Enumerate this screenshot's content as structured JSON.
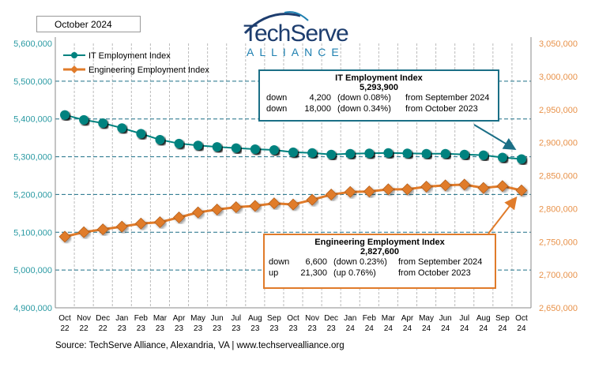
{
  "date_label": "October 2024",
  "logo": {
    "name": "TechServe",
    "sub": "ALLIANCE"
  },
  "source": "Source: TechServe  Alliance, Alexandria, VA | www.techservealliance.org",
  "it_box": {
    "title": "IT Employment Index",
    "value": "5,293,900",
    "rows": [
      [
        "down",
        "4,200",
        "(down 0.08%)",
        "from September 2024"
      ],
      [
        "down",
        "18,000",
        "(down 0.34%)",
        "from October 2023"
      ]
    ]
  },
  "eng_box": {
    "title": "Engineering Employment Index",
    "value": "2,827,600",
    "rows": [
      [
        "down",
        "6,600",
        "(down 0.23%)",
        "from  September 2024"
      ],
      [
        "up",
        "21,300",
        "(up 0.76%)",
        "from  October 2023"
      ]
    ]
  },
  "chart_data": {
    "type": "line",
    "x_month": [
      "Oct",
      "Nov",
      "Dec",
      "Jan",
      "Feb",
      "Mar",
      "Apr",
      "May",
      "Jun",
      "Jul",
      "Aug",
      "Sep",
      "Oct",
      "Nov",
      "Dec",
      "Jan",
      "Feb",
      "Mar",
      "Apr",
      "May",
      "Jun",
      "Jul",
      "Aug",
      "Sep",
      "Oct"
    ],
    "x_year": [
      "22",
      "22",
      "22",
      "23",
      "23",
      "23",
      "23",
      "23",
      "23",
      "23",
      "23",
      "23",
      "23",
      "23",
      "23",
      "24",
      "24",
      "24",
      "24",
      "24",
      "24",
      "24",
      "24",
      "24",
      "24"
    ],
    "left_axis": {
      "ylim": [
        4900000,
        5600000
      ],
      "ticks": [
        "4,900,000",
        "5,000,000",
        "5,100,000",
        "5,200,000",
        "5,300,000",
        "5,400,000",
        "5,500,000",
        "5,600,000"
      ],
      "color": "#2a9aa3"
    },
    "right_axis": {
      "ylim": [
        2650000,
        3050000
      ],
      "ticks": [
        "2,650,000",
        "2,700,000",
        "2,750,000",
        "2,800,000",
        "2,850,000",
        "2,900,000",
        "2,950,000",
        "3,000,000",
        "3,050,000"
      ],
      "color": "#e8924a"
    },
    "legend_position": "top-left",
    "grid": true,
    "series": [
      {
        "name": "IT Employment Index",
        "axis": "left",
        "color": "#00827f",
        "marker": "circle",
        "values": [
          5410700,
          5397500,
          5389000,
          5376000,
          5361000,
          5345000,
          5335000,
          5330000,
          5326000,
          5323000,
          5320000,
          5318000,
          5311900,
          5310000,
          5306000,
          5308000,
          5309000,
          5310000,
          5309000,
          5308000,
          5308000,
          5306000,
          5304000,
          5298100,
          5293900
        ]
      },
      {
        "name": "Engineering Employment Index",
        "axis": "right",
        "color": "#e07b2a",
        "marker": "diamond",
        "values": [
          2757600,
          2764400,
          2768700,
          2772800,
          2777500,
          2779500,
          2786700,
          2794300,
          2798600,
          2802200,
          2804200,
          2808100,
          2806300,
          2813400,
          2821300,
          2825300,
          2826000,
          2829300,
          2829300,
          2833300,
          2835200,
          2836400,
          2831300,
          2834200,
          2827600
        ]
      }
    ]
  }
}
